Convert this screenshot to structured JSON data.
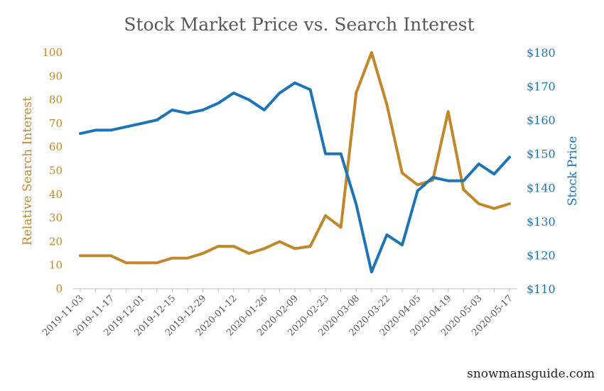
{
  "chart_data": {
    "type": "line",
    "title": "Stock Market Price vs. Search Interest",
    "ylabel_left": "Relative Search Interest",
    "ylabel_right": "Stock Price",
    "ylim_left": [
      0,
      100
    ],
    "ylim_right": [
      110,
      180
    ],
    "yticks_left": [
      "0",
      "10",
      "20",
      "30",
      "40",
      "50",
      "60",
      "70",
      "80",
      "90",
      "100"
    ],
    "yticks_right": [
      "$110",
      "$120",
      "$130",
      "$140",
      "$150",
      "$160",
      "$170",
      "$180"
    ],
    "x": [
      "2019-11-03",
      "2019-11-10",
      "2019-11-17",
      "2019-11-24",
      "2019-12-01",
      "2019-12-08",
      "2019-12-15",
      "2019-12-22",
      "2019-12-29",
      "2020-01-05",
      "2020-01-12",
      "2020-01-19",
      "2020-01-26",
      "2020-02-02",
      "2020-02-09",
      "2020-02-16",
      "2020-02-23",
      "2020-03-01",
      "2020-03-08",
      "2020-03-15",
      "2020-03-22",
      "2020-03-29",
      "2020-04-05",
      "2020-04-12",
      "2020-04-19",
      "2020-04-26",
      "2020-05-03",
      "2020-05-10",
      "2020-05-17"
    ],
    "xtick_labels": [
      "2019-11-03",
      "2019-11-17",
      "2019-12-01",
      "2019-12-15",
      "2019-12-29",
      "2020-01-12",
      "2020-01-26",
      "2020-02-09",
      "2020-02-23",
      "2020-03-08",
      "2020-03-22",
      "2020-04-05",
      "2020-04-19",
      "2020-05-03",
      "2020-05-17"
    ],
    "series": [
      {
        "name": "Relative Search Interest",
        "axis": "left",
        "color": "#c0882b",
        "values": [
          14,
          14,
          14,
          11,
          11,
          11,
          13,
          13,
          15,
          18,
          18,
          15,
          17,
          20,
          17,
          18,
          31,
          26,
          83,
          100,
          78,
          49,
          44,
          46,
          75,
          42,
          36,
          34,
          36
        ]
      },
      {
        "name": "Stock Price",
        "axis": "right",
        "color": "#1f74b5",
        "values": [
          156,
          157,
          157,
          158,
          159,
          160,
          163,
          162,
          163,
          165,
          168,
          166,
          163,
          168,
          171,
          169,
          150,
          150,
          135,
          115,
          126,
          123,
          139,
          143,
          142,
          142,
          147,
          144,
          149
        ]
      }
    ]
  },
  "watermark": "snowmansguide.com"
}
